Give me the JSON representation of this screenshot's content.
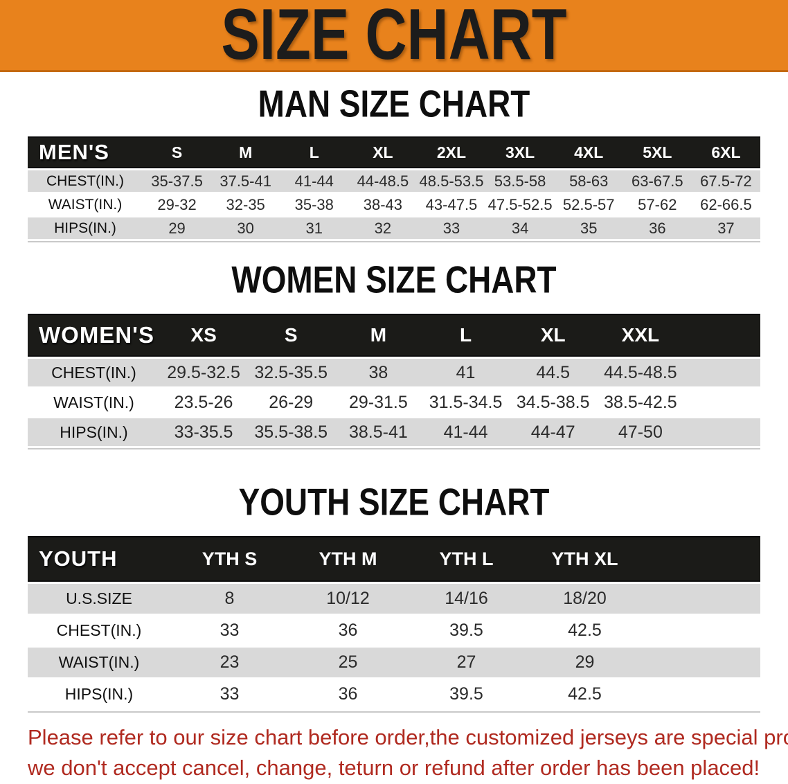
{
  "banner": {
    "title": "SIZE CHART"
  },
  "colors": {
    "banner_bg": "#E8821C",
    "banner_border": "#C56A10",
    "banner_text": "#1C1C1C",
    "table_header_bg": "#1B1B18",
    "table_header_text": "#FFFFFF",
    "row_stripe": "#D9D9D9",
    "note_text": "#B02A20"
  },
  "tables": {
    "men": {
      "section_title": "MAN SIZE CHART",
      "header_label": "MEN'S",
      "columns": [
        "S",
        "M",
        "L",
        "XL",
        "2XL",
        "3XL",
        "4XL",
        "5XL",
        "6XL"
      ],
      "rows": [
        {
          "label": "CHEST(IN.)",
          "values": [
            "35-37.5",
            "37.5-41",
            "41-44",
            "44-48.5",
            "48.5-53.5",
            "53.5-58",
            "58-63",
            "63-67.5",
            "67.5-72"
          ]
        },
        {
          "label": "WAIST(IN.)",
          "values": [
            "29-32",
            "32-35",
            "35-38",
            "38-43",
            "43-47.5",
            "47.5-52.5",
            "52.5-57",
            "57-62",
            "62-66.5"
          ]
        },
        {
          "label": "HIPS(IN.)",
          "values": [
            "29",
            "30",
            "31",
            "32",
            "33",
            "34",
            "35",
            "36",
            "37"
          ]
        }
      ]
    },
    "women": {
      "section_title": "WOMEN SIZE CHART",
      "header_label": "WOMEN'S",
      "columns": [
        "XS",
        "S",
        "M",
        "L",
        "XL",
        "XXL"
      ],
      "rows": [
        {
          "label": "CHEST(IN.)",
          "values": [
            "29.5-32.5",
            "32.5-35.5",
            "38",
            "41",
            "44.5",
            "44.5-48.5"
          ]
        },
        {
          "label": "WAIST(IN.)",
          "values": [
            "23.5-26",
            "26-29",
            "29-31.5",
            "31.5-34.5",
            "34.5-38.5",
            "38.5-42.5"
          ]
        },
        {
          "label": "HIPS(IN.)",
          "values": [
            "33-35.5",
            "35.5-38.5",
            "38.5-41",
            "41-44",
            "44-47",
            "47-50"
          ]
        }
      ]
    },
    "youth": {
      "section_title": "YOUTH SIZE CHART",
      "header_label": "YOUTH",
      "columns": [
        "YTH S",
        "YTH M",
        "YTH L",
        "YTH XL"
      ],
      "rows": [
        {
          "label": "U.S.SIZE",
          "values": [
            "8",
            "10/12",
            "14/16",
            "18/20"
          ]
        },
        {
          "label": "CHEST(IN.)",
          "values": [
            "33",
            "36",
            "39.5",
            "42.5"
          ]
        },
        {
          "label": "WAIST(IN.)",
          "values": [
            "23",
            "25",
            "27",
            "29"
          ]
        },
        {
          "label": "HIPS(IN.)",
          "values": [
            "33",
            "36",
            "39.5",
            "42.5"
          ]
        }
      ]
    }
  },
  "note": {
    "line1": "Please refer to our size chart before order,the customized jerseys are special products,",
    "line2": "we don't accept cancel, change, teturn or refund after order has been placed!"
  }
}
